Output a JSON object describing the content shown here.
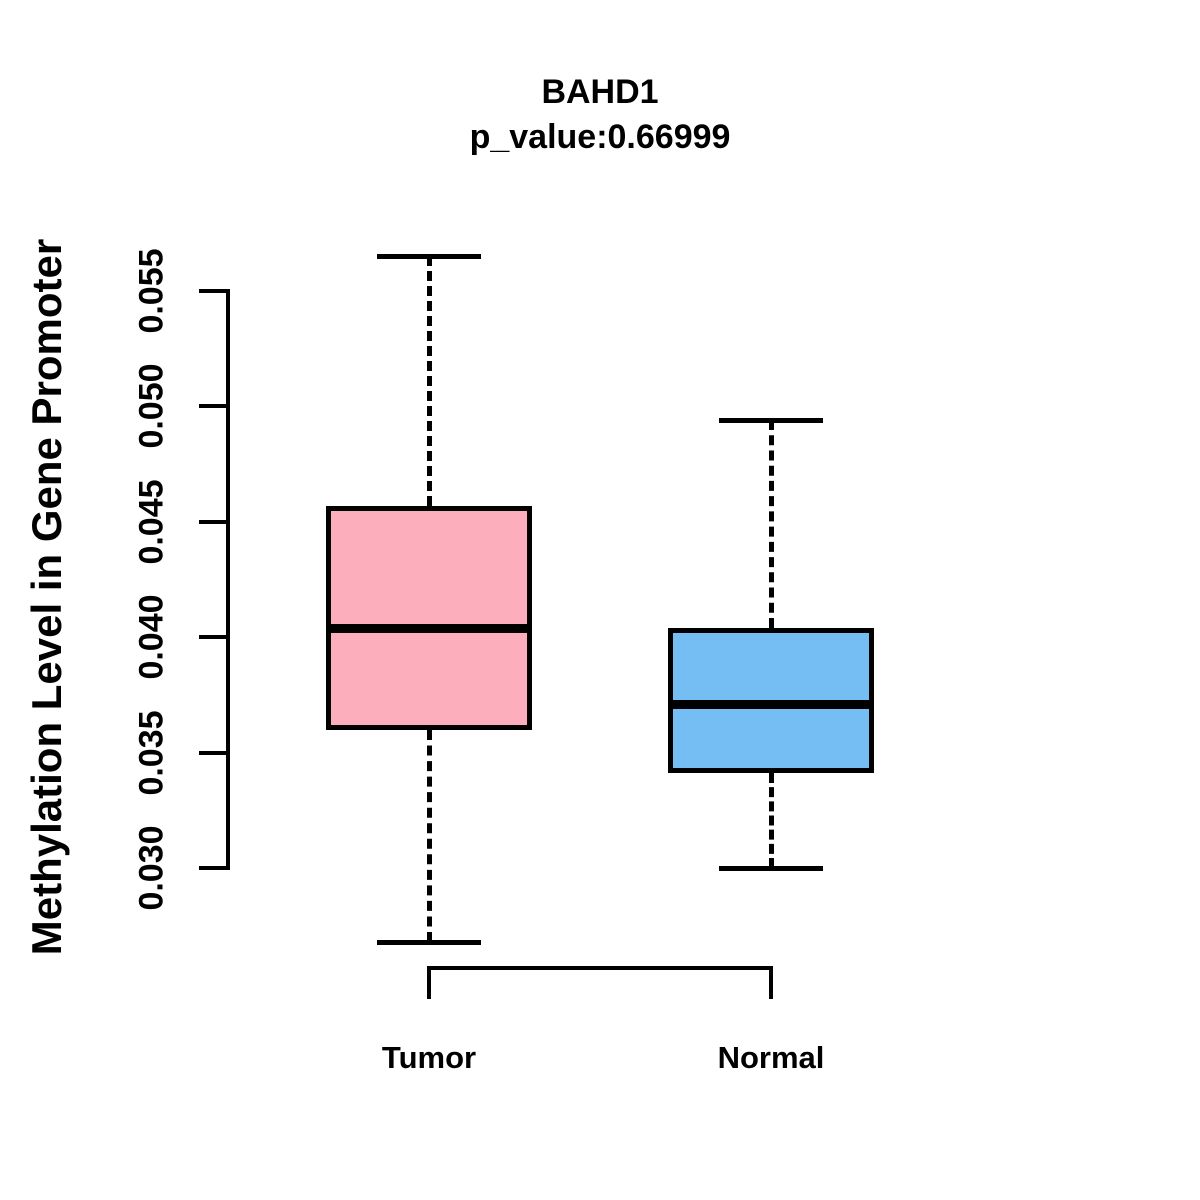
{
  "chart_data": {
    "type": "box",
    "title": "BAHD1",
    "subtitle": "p_value:0.66999",
    "ylabel": "Methylation Level in Gene Promoter",
    "xlabel": "",
    "categories": [
      "Tumor",
      "Normal"
    ],
    "yticks": [
      0.03,
      0.035,
      0.04,
      0.045,
      0.05,
      0.055
    ],
    "ylim": [
      0.0268,
      0.0565
    ],
    "grid": false,
    "legend": "none",
    "series": [
      {
        "name": "Tumor",
        "color": "#FDAEBD",
        "whisker_low": 0.0268,
        "q1": 0.036,
        "median": 0.0404,
        "q3": 0.0457,
        "whisker_high": 0.0565,
        "outliers": []
      },
      {
        "name": "Normal",
        "color": "#74BEF4",
        "whisker_low": 0.03,
        "q1": 0.0341,
        "median": 0.0371,
        "q3": 0.0404,
        "whisker_high": 0.0494,
        "outliers": []
      }
    ],
    "line_color": "#000000",
    "background_color": "#ffffff"
  }
}
